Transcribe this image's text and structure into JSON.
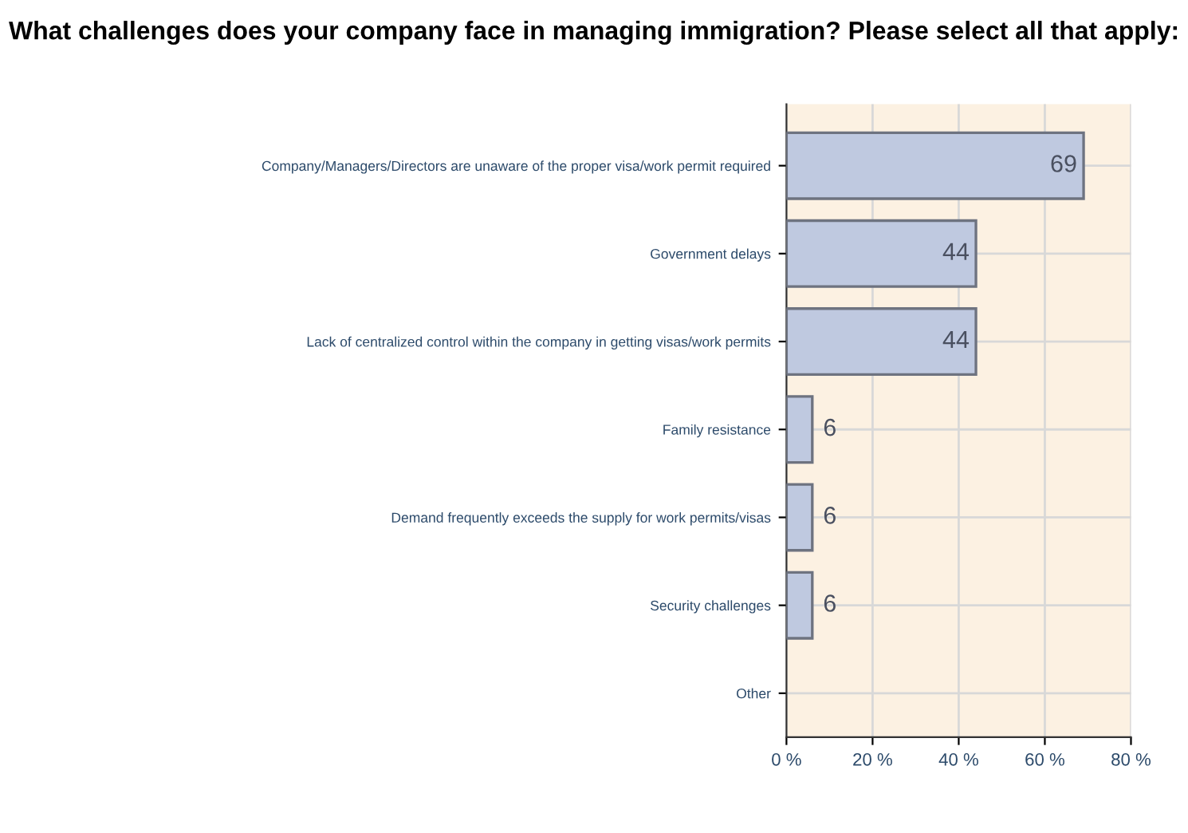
{
  "chart_data": {
    "type": "bar",
    "orientation": "horizontal",
    "title": "What challenges does your company face in managing immigration? Please select all that apply:",
    "categories": [
      "Company/Managers/Directors are unaware of the proper visa/work permit required",
      "Government delays",
      "Lack of centralized control within the company in getting visas/work permits",
      "Family resistance",
      "Demand frequently exceeds the supply for work permits/visas",
      "Security challenges",
      "Other"
    ],
    "values": [
      69,
      44,
      44,
      6,
      6,
      6,
      null
    ],
    "color": "#bfc9e0",
    "xlim": [
      0,
      80
    ],
    "xticks": [
      {
        "value": 0,
        "label": "0 %"
      },
      {
        "value": 20,
        "label": "20 %"
      },
      {
        "value": 40,
        "label": "40 %"
      },
      {
        "value": 60,
        "label": "60 %"
      },
      {
        "value": 80,
        "label": "80 %"
      }
    ],
    "grid": true,
    "data_labels": true
  }
}
